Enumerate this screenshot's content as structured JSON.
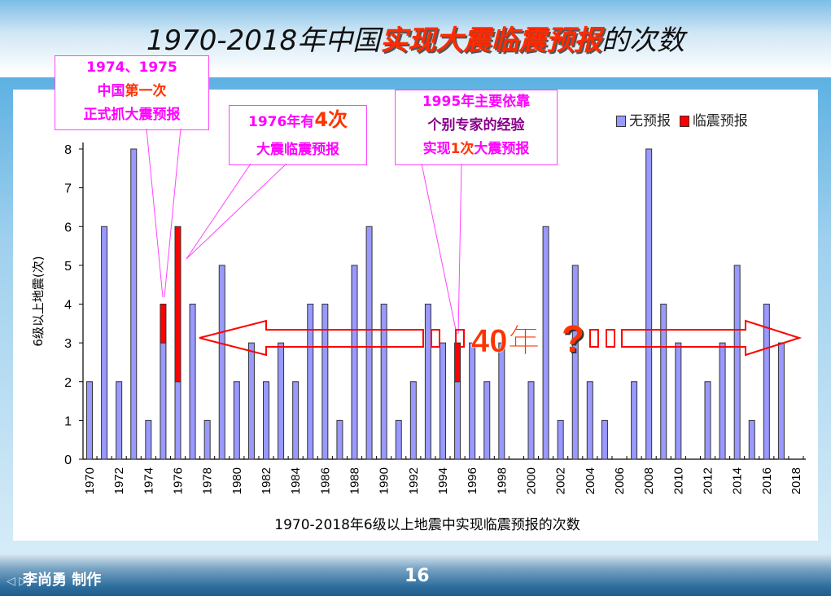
{
  "slide": {
    "title_prefix": "1970-2018年中国",
    "title_highlight": "实现大震临震预报",
    "title_suffix": "的次数",
    "author": "李尚勇 制作",
    "page_number": "16"
  },
  "callouts": {
    "c1": {
      "line1": "1974、1975",
      "line2a": "中国",
      "line2b": "第一次",
      "line3": "正式抓大震预报"
    },
    "c2": {
      "line1a": "1976年有",
      "line1b": "4次",
      "line2": "大震临震预报"
    },
    "c3": {
      "line1": "1995年主要依靠",
      "line2": "个别专家的经验",
      "line3a": "实现",
      "line3b": "1次",
      "line3c": "大震预报"
    }
  },
  "annotation": {
    "gap_label": "40年",
    "question": "?"
  },
  "colors": {
    "no_forecast": "#9999ff",
    "forecast": "#ff0000",
    "accent": "#ff3300",
    "callout": "#ff00ff"
  },
  "chart_data": {
    "type": "bar",
    "stacked": true,
    "xlabel": "1970-2018年6级以上地震中实现临震预报的次数",
    "ylabel": "6级以上地震(次)",
    "ylim": [
      0,
      8
    ],
    "yticks": [
      "0",
      "1",
      "2",
      "3",
      "4",
      "5",
      "6",
      "7",
      "8"
    ],
    "xticks": [
      "1970",
      "1972",
      "1974",
      "1976",
      "1978",
      "1980",
      "1982",
      "1984",
      "1986",
      "1988",
      "1990",
      "1992",
      "1994",
      "1996",
      "1998",
      "2000",
      "2002",
      "2004",
      "2006",
      "2008",
      "2010",
      "2012",
      "2014",
      "2016",
      "2018"
    ],
    "legend_position": "top-right",
    "categories": [
      1970,
      1971,
      1972,
      1973,
      1974,
      1975,
      1976,
      1977,
      1978,
      1979,
      1980,
      1981,
      1982,
      1983,
      1984,
      1985,
      1986,
      1987,
      1988,
      1989,
      1990,
      1991,
      1992,
      1993,
      1994,
      1995,
      1996,
      1997,
      1998,
      1999,
      2000,
      2001,
      2002,
      2003,
      2004,
      2005,
      2006,
      2007,
      2008,
      2009,
      2010,
      2011,
      2012,
      2013,
      2014,
      2015,
      2016,
      2017,
      2018
    ],
    "series": [
      {
        "name": "无预报",
        "values": [
          2,
          6,
          2,
          8,
          1,
          3,
          2,
          4,
          1,
          5,
          2,
          3,
          2,
          3,
          2,
          4,
          4,
          1,
          5,
          6,
          4,
          1,
          2,
          4,
          3,
          2,
          3,
          2,
          3,
          0,
          2,
          6,
          1,
          5,
          2,
          1,
          0,
          2,
          8,
          4,
          3,
          0,
          2,
          3,
          5,
          1,
          4,
          3,
          0
        ]
      },
      {
        "name": "临震预报",
        "values": [
          0,
          0,
          0,
          0,
          0,
          1,
          4,
          0,
          0,
          0,
          0,
          0,
          0,
          0,
          0,
          0,
          0,
          0,
          0,
          0,
          0,
          0,
          0,
          0,
          0,
          1,
          0,
          0,
          0,
          0,
          0,
          0,
          0,
          0,
          0,
          0,
          0,
          0,
          0,
          0,
          0,
          0,
          0,
          0,
          0,
          0,
          0,
          0,
          0
        ]
      }
    ]
  }
}
